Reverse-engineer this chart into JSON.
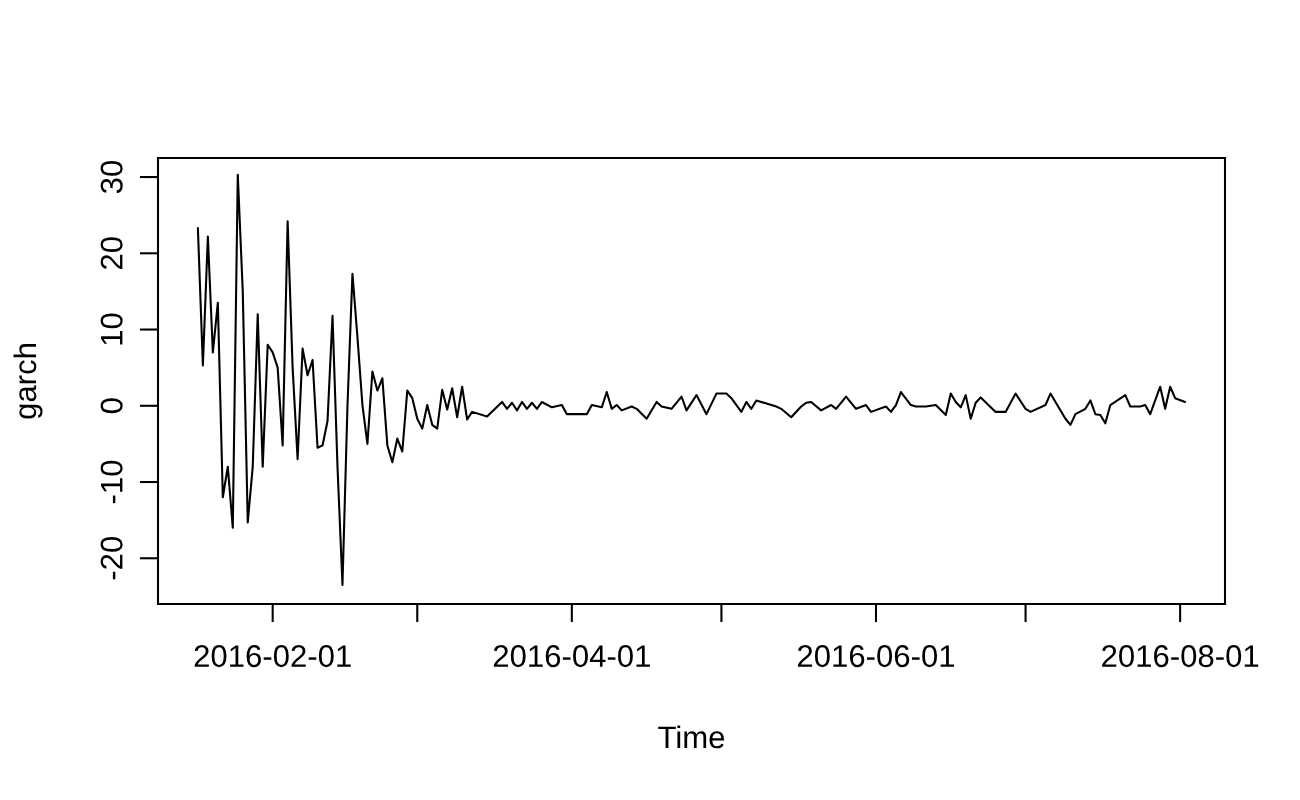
{
  "chart_data": {
    "type": "line",
    "xlabel": "Time",
    "ylabel": "garch",
    "color": "#000000",
    "marker": "none",
    "line_style": "solid",
    "x": [
      "2016-01-17",
      "2016-01-18",
      "2016-01-19",
      "2016-01-20",
      "2016-01-21",
      "2016-01-22",
      "2016-01-23",
      "2016-01-24",
      "2016-01-25",
      "2016-01-26",
      "2016-01-27",
      "2016-01-28",
      "2016-01-29",
      "2016-01-30",
      "2016-01-31",
      "2016-02-01",
      "2016-02-02",
      "2016-02-03",
      "2016-02-04",
      "2016-02-05",
      "2016-02-06",
      "2016-02-07",
      "2016-02-08",
      "2016-02-09",
      "2016-02-10",
      "2016-02-11",
      "2016-02-12",
      "2016-02-13",
      "2016-02-14",
      "2016-02-15",
      "2016-02-16",
      "2016-02-17",
      "2016-02-18",
      "2016-02-19",
      "2016-02-20",
      "2016-02-21",
      "2016-02-22",
      "2016-02-23",
      "2016-02-24",
      "2016-02-25",
      "2016-02-26",
      "2016-02-27",
      "2016-02-28",
      "2016-02-29",
      "2016-03-01",
      "2016-03-02",
      "2016-03-03",
      "2016-03-04",
      "2016-03-05",
      "2016-03-06",
      "2016-03-07",
      "2016-03-08",
      "2016-03-09",
      "2016-03-10",
      "2016-03-11",
      "2016-03-12",
      "2016-03-15",
      "2016-03-18",
      "2016-03-19",
      "2016-03-20",
      "2016-03-21",
      "2016-03-22",
      "2016-03-23",
      "2016-03-24",
      "2016-03-25",
      "2016-03-26",
      "2016-03-28",
      "2016-03-30",
      "2016-03-31",
      "2016-04-04",
      "2016-04-05",
      "2016-04-07",
      "2016-04-08",
      "2016-04-09",
      "2016-04-10",
      "2016-04-11",
      "2016-04-13",
      "2016-04-14",
      "2016-04-16",
      "2016-04-18",
      "2016-04-19",
      "2016-04-21",
      "2016-04-23",
      "2016-04-24",
      "2016-04-26",
      "2016-04-28",
      "2016-04-30",
      "2016-05-02",
      "2016-05-03",
      "2016-05-05",
      "2016-05-06",
      "2016-05-07",
      "2016-05-08",
      "2016-05-12",
      "2016-05-13",
      "2016-05-15",
      "2016-05-17",
      "2016-05-18",
      "2016-05-19",
      "2016-05-21",
      "2016-05-23",
      "2016-05-24",
      "2016-05-26",
      "2016-05-28",
      "2016-05-30",
      "2016-05-31",
      "2016-06-03",
      "2016-06-04",
      "2016-06-05",
      "2016-06-06",
      "2016-06-08",
      "2016-06-09",
      "2016-06-11",
      "2016-06-13",
      "2016-06-15",
      "2016-06-16",
      "2016-06-17",
      "2016-06-18",
      "2016-06-19",
      "2016-06-20",
      "2016-06-21",
      "2016-06-22",
      "2016-06-25",
      "2016-06-27",
      "2016-06-29",
      "2016-07-01",
      "2016-07-02",
      "2016-07-05",
      "2016-07-06",
      "2016-07-07",
      "2016-07-09",
      "2016-07-10",
      "2016-07-11",
      "2016-07-13",
      "2016-07-14",
      "2016-07-15",
      "2016-07-16",
      "2016-07-17",
      "2016-07-18",
      "2016-07-21",
      "2016-07-22",
      "2016-07-24",
      "2016-07-25",
      "2016-07-26",
      "2016-07-28",
      "2016-07-29",
      "2016-07-30",
      "2016-07-31",
      "2016-08-02"
    ],
    "values": [
      23.3,
      5.3,
      22.2,
      7,
      13.5,
      -12,
      -8,
      -16,
      30.3,
      15,
      -15.3,
      -8,
      12,
      -8,
      8,
      7,
      5,
      -5.2,
      24.2,
      5,
      -7,
      7.5,
      4,
      6,
      -5.5,
      -5.2,
      -2,
      11.8,
      -8,
      -23.5,
      0,
      17.3,
      9,
      0.1,
      -5,
      4.5,
      2,
      3.6,
      -5.2,
      -7.4,
      -4.3,
      -6,
      2.0,
      1.0,
      -1.7,
      -3.0,
      0.1,
      -2.5,
      -3.0,
      2.1,
      -0.5,
      2.3,
      -1.5,
      2.5,
      -1.8,
      -0.8,
      -1.4,
      0.5,
      -0.4,
      0.4,
      -0.6,
      0.5,
      -0.4,
      0.4,
      -0.4,
      0.5,
      -0.2,
      0.1,
      -1.1,
      -1.1,
      0.1,
      -0.2,
      1.8,
      -0.4,
      0.1,
      -0.6,
      -0.1,
      -0.4,
      -1.7,
      0.5,
      -0.1,
      -0.4,
      1.2,
      -0.6,
      1.4,
      -1.1,
      1.6,
      1.6,
      1.0,
      -0.8,
      0.5,
      -0.4,
      0.7,
      -0.1,
      -0.4,
      -1.5,
      -0.1,
      0.4,
      0.5,
      -0.6,
      0.1,
      -0.4,
      1.2,
      -0.4,
      0.1,
      -0.8,
      -0.1,
      -0.8,
      0.1,
      1.8,
      0.1,
      -0.1,
      -0.1,
      0.1,
      -1.2,
      1.6,
      0.5,
      -0.2,
      1.4,
      -1.7,
      0.4,
      1.1,
      -0.8,
      -0.8,
      1.6,
      -0.4,
      -0.8,
      0.1,
      1.6,
      0.5,
      -1.7,
      -2.5,
      -1.1,
      -0.4,
      0.7,
      -1.1,
      -1.2,
      -2.3,
      0.1,
      1.4,
      -0.1,
      -0.1,
      0.1,
      -1.1,
      2.5,
      -0.4,
      2.5,
      1.0,
      0.5
    ],
    "xlim": [
      "2016-01-09",
      "2016-08-10"
    ],
    "xticks": [
      "2016-02-01",
      {
        "value": "2016-03-01",
        "label": null
      },
      "2016-04-01",
      {
        "value": "2016-05-01",
        "label": null
      },
      "2016-06-01",
      {
        "value": "2016-07-01",
        "label": null
      },
      "2016-08-01"
    ],
    "ylim": [
      -26,
      32.5
    ],
    "yticks": [
      -20,
      -10,
      0,
      10,
      20,
      30
    ]
  }
}
